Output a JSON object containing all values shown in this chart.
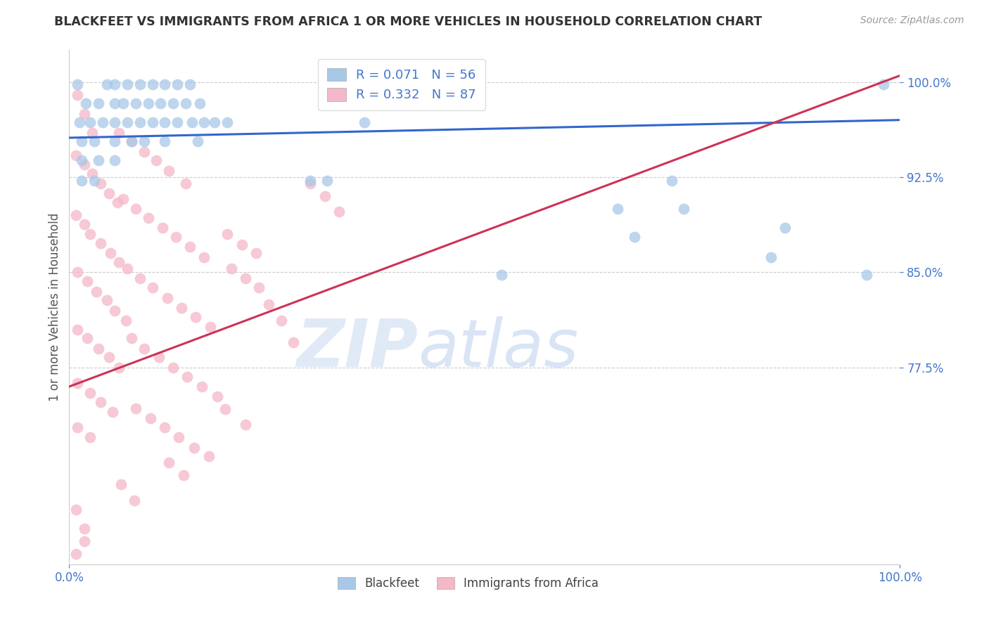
{
  "title": "BLACKFEET VS IMMIGRANTS FROM AFRICA 1 OR MORE VEHICLES IN HOUSEHOLD CORRELATION CHART",
  "source_text": "Source: ZipAtlas.com",
  "ylabel": "1 or more Vehicles in Household",
  "xlim": [
    0.0,
    1.0
  ],
  "ylim": [
    0.62,
    1.025
  ],
  "yticks": [
    0.775,
    0.85,
    0.925,
    1.0
  ],
  "xticks": [
    0.0,
    1.0
  ],
  "legend_labels": [
    "Blackfeet",
    "Immigrants from Africa"
  ],
  "R_blackfeet": 0.071,
  "N_blackfeet": 56,
  "R_africa": 0.332,
  "N_africa": 87,
  "blue_color": "#a8c8e8",
  "pink_color": "#f4b8c8",
  "line_blue": "#3366cc",
  "line_pink": "#cc3355",
  "watermark_zip": "ZIP",
  "watermark_atlas": "atlas",
  "background_color": "#ffffff",
  "grid_color": "#cccccc",
  "title_color": "#333333",
  "axis_label_color": "#555555",
  "tick_color": "#4477cc",
  "blue_scatter": [
    [
      0.01,
      0.998
    ],
    [
      0.045,
      0.998
    ],
    [
      0.055,
      0.998
    ],
    [
      0.07,
      0.998
    ],
    [
      0.085,
      0.998
    ],
    [
      0.1,
      0.998
    ],
    [
      0.115,
      0.998
    ],
    [
      0.13,
      0.998
    ],
    [
      0.145,
      0.998
    ],
    [
      0.02,
      0.983
    ],
    [
      0.035,
      0.983
    ],
    [
      0.055,
      0.983
    ],
    [
      0.065,
      0.983
    ],
    [
      0.08,
      0.983
    ],
    [
      0.095,
      0.983
    ],
    [
      0.11,
      0.983
    ],
    [
      0.125,
      0.983
    ],
    [
      0.14,
      0.983
    ],
    [
      0.157,
      0.983
    ],
    [
      0.012,
      0.968
    ],
    [
      0.025,
      0.968
    ],
    [
      0.04,
      0.968
    ],
    [
      0.055,
      0.968
    ],
    [
      0.07,
      0.968
    ],
    [
      0.085,
      0.968
    ],
    [
      0.1,
      0.968
    ],
    [
      0.115,
      0.968
    ],
    [
      0.13,
      0.968
    ],
    [
      0.148,
      0.968
    ],
    [
      0.162,
      0.968
    ],
    [
      0.175,
      0.968
    ],
    [
      0.19,
      0.968
    ],
    [
      0.015,
      0.953
    ],
    [
      0.03,
      0.953
    ],
    [
      0.055,
      0.953
    ],
    [
      0.075,
      0.953
    ],
    [
      0.09,
      0.953
    ],
    [
      0.115,
      0.953
    ],
    [
      0.155,
      0.953
    ],
    [
      0.015,
      0.938
    ],
    [
      0.035,
      0.938
    ],
    [
      0.055,
      0.938
    ],
    [
      0.015,
      0.922
    ],
    [
      0.03,
      0.922
    ],
    [
      0.29,
      0.922
    ],
    [
      0.31,
      0.922
    ],
    [
      0.355,
      0.968
    ],
    [
      0.52,
      0.848
    ],
    [
      0.66,
      0.9
    ],
    [
      0.68,
      0.878
    ],
    [
      0.725,
      0.922
    ],
    [
      0.74,
      0.9
    ],
    [
      0.845,
      0.862
    ],
    [
      0.862,
      0.885
    ],
    [
      0.96,
      0.848
    ],
    [
      0.98,
      0.998
    ]
  ],
  "pink_scatter": [
    [
      0.01,
      0.99
    ],
    [
      0.018,
      0.975
    ],
    [
      0.028,
      0.96
    ],
    [
      0.008,
      0.942
    ],
    [
      0.018,
      0.935
    ],
    [
      0.028,
      0.928
    ],
    [
      0.038,
      0.92
    ],
    [
      0.048,
      0.912
    ],
    [
      0.058,
      0.905
    ],
    [
      0.008,
      0.895
    ],
    [
      0.018,
      0.888
    ],
    [
      0.025,
      0.88
    ],
    [
      0.038,
      0.873
    ],
    [
      0.05,
      0.865
    ],
    [
      0.06,
      0.858
    ],
    [
      0.01,
      0.85
    ],
    [
      0.022,
      0.843
    ],
    [
      0.033,
      0.835
    ],
    [
      0.045,
      0.828
    ],
    [
      0.055,
      0.82
    ],
    [
      0.068,
      0.812
    ],
    [
      0.01,
      0.805
    ],
    [
      0.022,
      0.798
    ],
    [
      0.035,
      0.79
    ],
    [
      0.048,
      0.783
    ],
    [
      0.06,
      0.775
    ],
    [
      0.01,
      0.763
    ],
    [
      0.025,
      0.755
    ],
    [
      0.038,
      0.748
    ],
    [
      0.052,
      0.74
    ],
    [
      0.01,
      0.728
    ],
    [
      0.025,
      0.72
    ],
    [
      0.06,
      0.96
    ],
    [
      0.075,
      0.953
    ],
    [
      0.09,
      0.945
    ],
    [
      0.105,
      0.938
    ],
    [
      0.12,
      0.93
    ],
    [
      0.14,
      0.92
    ],
    [
      0.065,
      0.908
    ],
    [
      0.08,
      0.9
    ],
    [
      0.095,
      0.893
    ],
    [
      0.112,
      0.885
    ],
    [
      0.128,
      0.878
    ],
    [
      0.145,
      0.87
    ],
    [
      0.162,
      0.862
    ],
    [
      0.07,
      0.853
    ],
    [
      0.085,
      0.845
    ],
    [
      0.1,
      0.838
    ],
    [
      0.118,
      0.83
    ],
    [
      0.135,
      0.822
    ],
    [
      0.152,
      0.815
    ],
    [
      0.17,
      0.807
    ],
    [
      0.075,
      0.798
    ],
    [
      0.09,
      0.79
    ],
    [
      0.108,
      0.783
    ],
    [
      0.125,
      0.775
    ],
    [
      0.142,
      0.768
    ],
    [
      0.16,
      0.76
    ],
    [
      0.178,
      0.752
    ],
    [
      0.08,
      0.743
    ],
    [
      0.098,
      0.735
    ],
    [
      0.115,
      0.728
    ],
    [
      0.132,
      0.72
    ],
    [
      0.15,
      0.712
    ],
    [
      0.168,
      0.705
    ],
    [
      0.19,
      0.88
    ],
    [
      0.208,
      0.872
    ],
    [
      0.225,
      0.865
    ],
    [
      0.195,
      0.853
    ],
    [
      0.212,
      0.845
    ],
    [
      0.228,
      0.838
    ],
    [
      0.24,
      0.825
    ],
    [
      0.255,
      0.812
    ],
    [
      0.27,
      0.795
    ],
    [
      0.12,
      0.7
    ],
    [
      0.138,
      0.69
    ],
    [
      0.062,
      0.683
    ],
    [
      0.078,
      0.67
    ],
    [
      0.008,
      0.663
    ],
    [
      0.018,
      0.648
    ],
    [
      0.008,
      0.628
    ],
    [
      0.018,
      0.638
    ],
    [
      0.188,
      0.742
    ],
    [
      0.212,
      0.73
    ],
    [
      0.29,
      0.92
    ],
    [
      0.308,
      0.91
    ],
    [
      0.325,
      0.898
    ]
  ],
  "blue_trendline_x": [
    0.0,
    1.0
  ],
  "blue_trendline_y": [
    0.956,
    0.97
  ],
  "pink_trendline_x": [
    0.0,
    1.0
  ],
  "pink_trendline_y": [
    0.76,
    1.005
  ]
}
